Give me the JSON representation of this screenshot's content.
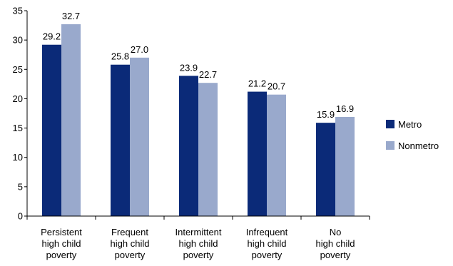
{
  "chart_data": {
    "type": "bar",
    "title": "",
    "xlabel": "",
    "ylabel": "",
    "ylim": [
      0,
      35
    ],
    "yticks": [
      0,
      5,
      10,
      15,
      20,
      25,
      30,
      35
    ],
    "grid": false,
    "legend_position": "right",
    "categories": [
      [
        "Persistent",
        "high child",
        "poverty"
      ],
      [
        "Frequent",
        "high child",
        "poverty"
      ],
      [
        "Intermittent",
        "high child",
        "poverty"
      ],
      [
        "Infrequent",
        "high child",
        "poverty"
      ],
      [
        "No",
        "high child",
        "poverty"
      ]
    ],
    "series": [
      {
        "name": "Metro",
        "color": "#0b2a78",
        "values": [
          29.2,
          25.8,
          23.9,
          21.2,
          15.9
        ]
      },
      {
        "name": "Nonmetro",
        "color": "#99a9cc",
        "values": [
          32.7,
          27.0,
          22.7,
          20.7,
          16.9
        ]
      }
    ]
  }
}
